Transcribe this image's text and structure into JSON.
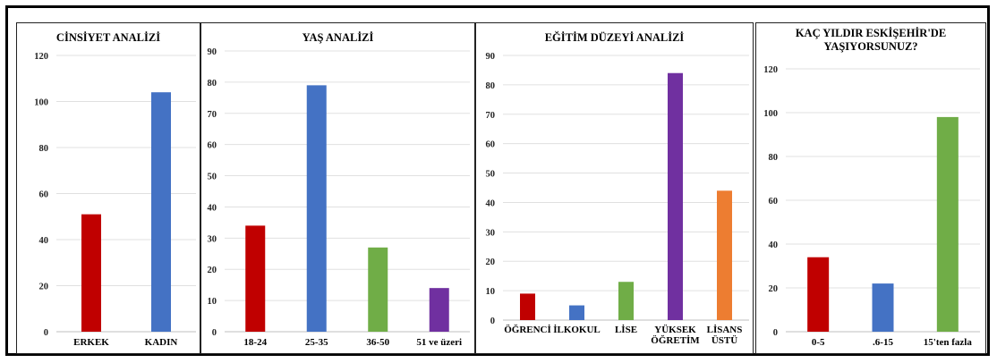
{
  "chart_data": [
    {
      "type": "bar",
      "title": "CİNSİYET ANALİZİ",
      "categories": [
        "ERKEK",
        "KADIN"
      ],
      "values": [
        51,
        104
      ],
      "colors": [
        "#c00000",
        "#4472c4"
      ],
      "ylim": [
        0,
        120
      ],
      "yticks": [
        "0",
        "20",
        "40",
        "60",
        "80",
        "100",
        "120"
      ],
      "grid": true
    },
    {
      "type": "bar",
      "title": "YAŞ ANALİZİ",
      "categories": [
        "18-24",
        "25-35",
        "36-50",
        "51 ve üzeri"
      ],
      "values": [
        34,
        79,
        27,
        14
      ],
      "colors": [
        "#c00000",
        "#4472c4",
        "#70ad47",
        "#7030a0"
      ],
      "ylim": [
        0,
        90
      ],
      "yticks": [
        "0",
        "10",
        "20",
        "30",
        "40",
        "50",
        "60",
        "70",
        "80",
        "90"
      ],
      "grid": true
    },
    {
      "type": "bar",
      "title": "EĞİTİM DÜZEYİ ANALİZİ",
      "categories": [
        "ÖĞRENCİ",
        "İLKOKUL",
        "LİSE",
        "YÜKSEK ÖĞRETİM",
        "LİSANS ÜSTÜ"
      ],
      "values": [
        9,
        5,
        13,
        84,
        44
      ],
      "colors": [
        "#c00000",
        "#4472c4",
        "#70ad47",
        "#7030a0",
        "#ed7d31"
      ],
      "ylim": [
        0,
        90
      ],
      "yticks": [
        "0",
        "10",
        "20",
        "30",
        "40",
        "50",
        "60",
        "70",
        "80",
        "90"
      ],
      "grid": true
    },
    {
      "type": "bar",
      "title": "KAÇ YILDIR ESKİŞEHİR'DE YAŞIYORSUNUZ?",
      "categories": [
        "0-5",
        ".6-15",
        "15'ten fazla"
      ],
      "values": [
        34,
        22,
        98
      ],
      "colors": [
        "#c00000",
        "#4472c4",
        "#70ad47"
      ],
      "ylim": [
        0,
        120
      ],
      "yticks": [
        "0",
        "20",
        "40",
        "60",
        "80",
        "100",
        "120"
      ],
      "grid": true
    }
  ]
}
